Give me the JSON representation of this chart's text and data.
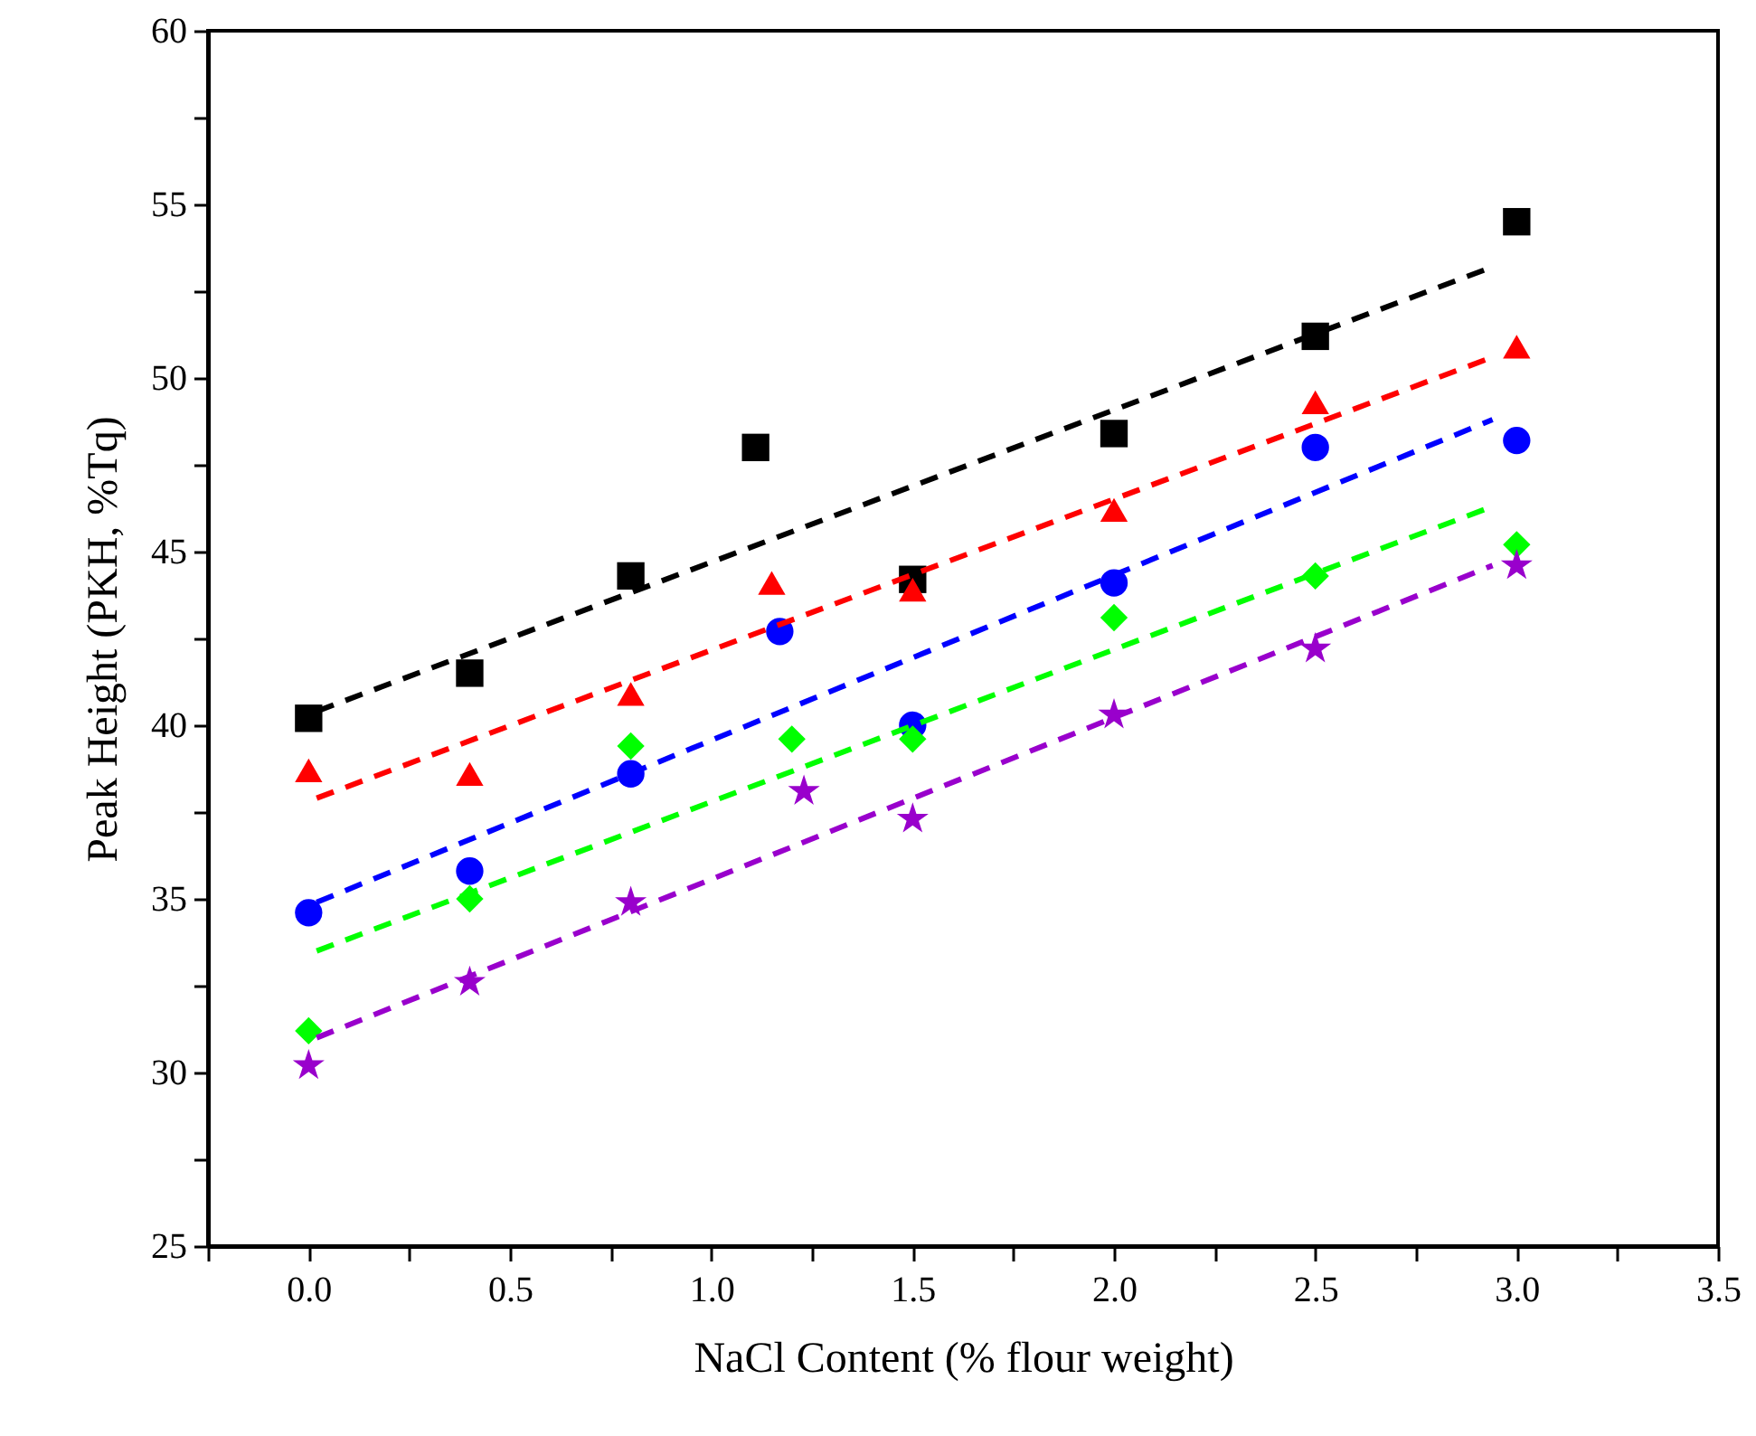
{
  "chart_data": {
    "type": "scatter",
    "xlabel": "NaCl Content (% flour weight)",
    "ylabel": "Peak Height (PKH, %Tq)",
    "xlim": [
      -0.25,
      3.5
    ],
    "ylim": [
      25,
      60
    ],
    "xticks": [
      {
        "value": -0.25,
        "label": null
      },
      {
        "value": 0,
        "label": "0.0"
      },
      {
        "value": 0.25,
        "label": null
      },
      0.5,
      {
        "value": 0.75,
        "label": null
      },
      {
        "value": 1,
        "label": "1.0"
      },
      {
        "value": 1.25,
        "label": null
      },
      1.5,
      {
        "value": 1.75,
        "label": null
      },
      {
        "value": 2,
        "label": "2.0"
      },
      {
        "value": 2.25,
        "label": null
      },
      2.5,
      {
        "value": 2.75,
        "label": null
      },
      {
        "value": 3,
        "label": "3.0"
      },
      {
        "value": 3.25,
        "label": null
      },
      3.5
    ],
    "yticks": [
      25,
      {
        "value": 27.5,
        "label": null
      },
      30,
      {
        "value": 32.5,
        "label": null
      },
      35,
      {
        "value": 37.5,
        "label": null
      },
      40,
      {
        "value": 42.5,
        "label": null
      },
      45,
      {
        "value": 47.5,
        "label": null
      },
      50,
      {
        "value": 52.5,
        "label": null
      },
      55,
      {
        "value": 57.5,
        "label": null
      },
      60
    ],
    "series": [
      {
        "type": "scatter",
        "marker": "square",
        "color": "#000000",
        "x": [
          0,
          0.4,
          0.8,
          1.11,
          1.5,
          2.0,
          2.5,
          3.0
        ],
        "values": [
          40.2,
          41.5,
          44.3,
          48.0,
          44.2,
          48.4,
          51.2,
          54.5
        ]
      },
      {
        "type": "scatter",
        "marker": "triangle",
        "color": "#ff0000",
        "x": [
          0,
          0.4,
          0.8,
          1.15,
          1.5,
          2.0,
          2.5,
          3.0
        ],
        "values": [
          38.7,
          38.6,
          40.9,
          44.1,
          43.9,
          46.2,
          49.3,
          50.9
        ]
      },
      {
        "type": "scatter",
        "marker": "circle",
        "color": "#0000ff",
        "x": [
          0,
          0.4,
          0.8,
          1.17,
          1.5,
          2.0,
          2.5,
          3.0
        ],
        "values": [
          34.6,
          35.8,
          38.6,
          42.7,
          40.0,
          44.1,
          48.0,
          48.2
        ]
      },
      {
        "type": "scatter",
        "marker": "diamond",
        "color": "#00ff00",
        "x": [
          0,
          0.4,
          0.8,
          1.2,
          1.5,
          2.0,
          2.5,
          3.0
        ],
        "values": [
          31.2,
          35.0,
          39.4,
          39.6,
          39.6,
          43.1,
          44.3,
          45.2
        ]
      },
      {
        "type": "scatter",
        "marker": "star",
        "color": "#9900cc",
        "x": [
          0,
          0.4,
          0.8,
          1.23,
          1.5,
          2.0,
          2.5,
          3.0
        ],
        "values": [
          30.2,
          32.6,
          34.9,
          38.1,
          37.3,
          40.3,
          42.2,
          44.6
        ]
      },
      {
        "type": "line",
        "line_style": "dashed",
        "marker": "none",
        "color": "#000000",
        "x": [
          0.02,
          2.94
        ],
        "values": [
          40.4,
          53.2
        ]
      },
      {
        "type": "line",
        "line_style": "dashed",
        "marker": "none",
        "color": "#ff0000",
        "x": [
          0.02,
          2.94
        ],
        "values": [
          37.9,
          50.6
        ]
      },
      {
        "type": "line",
        "line_style": "dashed",
        "marker": "none",
        "color": "#0000ff",
        "x": [
          0.02,
          2.94
        ],
        "values": [
          34.9,
          48.8
        ]
      },
      {
        "type": "line",
        "line_style": "dashed",
        "marker": "none",
        "color": "#00ff00",
        "x": [
          0.02,
          2.94
        ],
        "values": [
          33.5,
          46.3
        ]
      },
      {
        "type": "line",
        "line_style": "dashed",
        "marker": "none",
        "color": "#9900cc",
        "x": [
          0.02,
          2.94
        ],
        "values": [
          31.0,
          44.6
        ]
      }
    ]
  }
}
